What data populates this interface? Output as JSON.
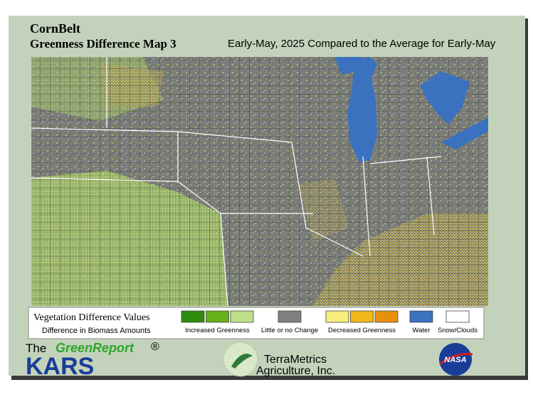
{
  "header": {
    "title": "CornBelt",
    "subtitle": "Greenness Difference Map 3",
    "period": "Early-May, 2025 Compared to the Average for Early-May"
  },
  "legend": {
    "title": "Vegetation Difference Values",
    "subtitle": "Difference in Biomass Amounts",
    "groups": [
      {
        "label": "Increased Greenness",
        "colors": [
          "#2e8b0e",
          "#66b01a",
          "#bfe08a"
        ]
      },
      {
        "label": "Little or no Change",
        "colors": [
          "#808080"
        ]
      },
      {
        "label": "Decreased Greenness",
        "colors": [
          "#f8ee80",
          "#f0b818",
          "#e8900c"
        ]
      },
      {
        "label": "Water",
        "colors": [
          "#3a72c0"
        ]
      },
      {
        "label": "Snow/Clouds",
        "colors": [
          "#ffffff"
        ]
      }
    ]
  },
  "footer": {
    "greenreport": {
      "prefix": "The",
      "name": "GreenReport",
      "mark": "®"
    },
    "kars": "KARS",
    "terrametrics": {
      "name": "TerraMetrics",
      "company": "Agriculture, Inc."
    },
    "nasa": "NASA"
  }
}
